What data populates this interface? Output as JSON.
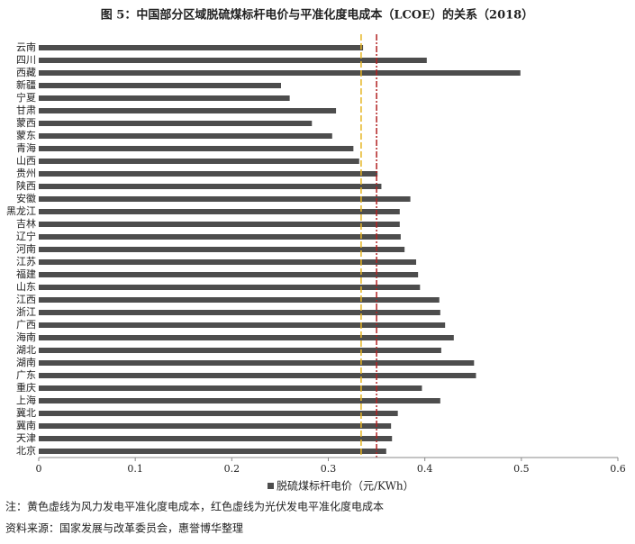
{
  "chart_data": {
    "type": "hbar",
    "title": "图 5：中国部分区域脱硫煤标杆电价与平准化度电成本（LCOE）的关系（2018）",
    "categories": [
      "云南",
      "四川",
      "西藏",
      "新疆",
      "宁夏",
      "甘肃",
      "蒙西",
      "蒙东",
      "青海",
      "山西",
      "贵州",
      "陕西",
      "安徽",
      "黑龙江",
      "吉林",
      "辽宁",
      "河南",
      "江苏",
      "福建",
      "山东",
      "江西",
      "浙江",
      "广西",
      "海南",
      "湖北",
      "湖南",
      "广东",
      "重庆",
      "上海",
      "冀北",
      "冀南",
      "天津",
      "北京"
    ],
    "series": [
      {
        "name": "脱硫煤标杆电价（元/KWh）",
        "color": "#4d4d4d",
        "values": [
          0.336,
          0.402,
          0.499,
          0.251,
          0.26,
          0.308,
          0.283,
          0.304,
          0.326,
          0.332,
          0.351,
          0.355,
          0.385,
          0.374,
          0.374,
          0.375,
          0.379,
          0.391,
          0.393,
          0.395,
          0.415,
          0.416,
          0.421,
          0.43,
          0.417,
          0.451,
          0.453,
          0.397,
          0.416,
          0.372,
          0.365,
          0.366,
          0.36
        ]
      }
    ],
    "xlim": [
      0,
      0.6
    ],
    "xticks": [
      0,
      0.1,
      0.2,
      0.3,
      0.4,
      0.5,
      0.6
    ],
    "reference_lines": [
      {
        "value": 0.334,
        "color": "#e6b422"
      },
      {
        "value": 0.35,
        "color": "#b22222"
      }
    ],
    "notes": [
      "注：黄色虚线为风力发电平准化度电成本，红色虚线为光伏发电平准化度电成本",
      "资料来源：国家发展与改革委员会，惠誉博华整理"
    ]
  }
}
